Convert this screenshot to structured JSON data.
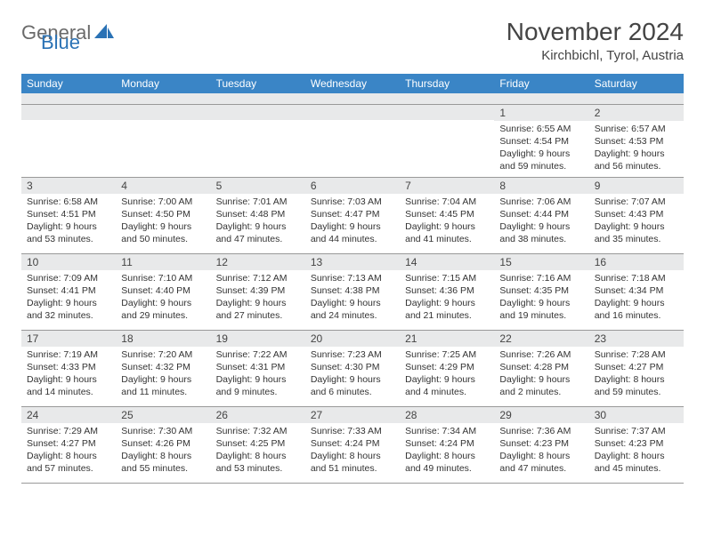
{
  "brand": {
    "part1": "General",
    "part2": "Blue"
  },
  "title": "November 2024",
  "location": "Kirchbichl, Tyrol, Austria",
  "colors": {
    "header_bg": "#3a85c6",
    "header_text": "#ffffff",
    "daynum_bg": "#e8e9ea",
    "border": "#999999",
    "text": "#333333",
    "brand_gray": "#6a6a6a",
    "brand_blue": "#2a72b5"
  },
  "dayHeaders": [
    "Sunday",
    "Monday",
    "Tuesday",
    "Wednesday",
    "Thursday",
    "Friday",
    "Saturday"
  ],
  "weeks": [
    [
      {
        "n": "",
        "sr": "",
        "ss": "",
        "dl": ""
      },
      {
        "n": "",
        "sr": "",
        "ss": "",
        "dl": ""
      },
      {
        "n": "",
        "sr": "",
        "ss": "",
        "dl": ""
      },
      {
        "n": "",
        "sr": "",
        "ss": "",
        "dl": ""
      },
      {
        "n": "",
        "sr": "",
        "ss": "",
        "dl": ""
      },
      {
        "n": "1",
        "sr": "Sunrise: 6:55 AM",
        "ss": "Sunset: 4:54 PM",
        "dl": "Daylight: 9 hours and 59 minutes."
      },
      {
        "n": "2",
        "sr": "Sunrise: 6:57 AM",
        "ss": "Sunset: 4:53 PM",
        "dl": "Daylight: 9 hours and 56 minutes."
      }
    ],
    [
      {
        "n": "3",
        "sr": "Sunrise: 6:58 AM",
        "ss": "Sunset: 4:51 PM",
        "dl": "Daylight: 9 hours and 53 minutes."
      },
      {
        "n": "4",
        "sr": "Sunrise: 7:00 AM",
        "ss": "Sunset: 4:50 PM",
        "dl": "Daylight: 9 hours and 50 minutes."
      },
      {
        "n": "5",
        "sr": "Sunrise: 7:01 AM",
        "ss": "Sunset: 4:48 PM",
        "dl": "Daylight: 9 hours and 47 minutes."
      },
      {
        "n": "6",
        "sr": "Sunrise: 7:03 AM",
        "ss": "Sunset: 4:47 PM",
        "dl": "Daylight: 9 hours and 44 minutes."
      },
      {
        "n": "7",
        "sr": "Sunrise: 7:04 AM",
        "ss": "Sunset: 4:45 PM",
        "dl": "Daylight: 9 hours and 41 minutes."
      },
      {
        "n": "8",
        "sr": "Sunrise: 7:06 AM",
        "ss": "Sunset: 4:44 PM",
        "dl": "Daylight: 9 hours and 38 minutes."
      },
      {
        "n": "9",
        "sr": "Sunrise: 7:07 AM",
        "ss": "Sunset: 4:43 PM",
        "dl": "Daylight: 9 hours and 35 minutes."
      }
    ],
    [
      {
        "n": "10",
        "sr": "Sunrise: 7:09 AM",
        "ss": "Sunset: 4:41 PM",
        "dl": "Daylight: 9 hours and 32 minutes."
      },
      {
        "n": "11",
        "sr": "Sunrise: 7:10 AM",
        "ss": "Sunset: 4:40 PM",
        "dl": "Daylight: 9 hours and 29 minutes."
      },
      {
        "n": "12",
        "sr": "Sunrise: 7:12 AM",
        "ss": "Sunset: 4:39 PM",
        "dl": "Daylight: 9 hours and 27 minutes."
      },
      {
        "n": "13",
        "sr": "Sunrise: 7:13 AM",
        "ss": "Sunset: 4:38 PM",
        "dl": "Daylight: 9 hours and 24 minutes."
      },
      {
        "n": "14",
        "sr": "Sunrise: 7:15 AM",
        "ss": "Sunset: 4:36 PM",
        "dl": "Daylight: 9 hours and 21 minutes."
      },
      {
        "n": "15",
        "sr": "Sunrise: 7:16 AM",
        "ss": "Sunset: 4:35 PM",
        "dl": "Daylight: 9 hours and 19 minutes."
      },
      {
        "n": "16",
        "sr": "Sunrise: 7:18 AM",
        "ss": "Sunset: 4:34 PM",
        "dl": "Daylight: 9 hours and 16 minutes."
      }
    ],
    [
      {
        "n": "17",
        "sr": "Sunrise: 7:19 AM",
        "ss": "Sunset: 4:33 PM",
        "dl": "Daylight: 9 hours and 14 minutes."
      },
      {
        "n": "18",
        "sr": "Sunrise: 7:20 AM",
        "ss": "Sunset: 4:32 PM",
        "dl": "Daylight: 9 hours and 11 minutes."
      },
      {
        "n": "19",
        "sr": "Sunrise: 7:22 AM",
        "ss": "Sunset: 4:31 PM",
        "dl": "Daylight: 9 hours and 9 minutes."
      },
      {
        "n": "20",
        "sr": "Sunrise: 7:23 AM",
        "ss": "Sunset: 4:30 PM",
        "dl": "Daylight: 9 hours and 6 minutes."
      },
      {
        "n": "21",
        "sr": "Sunrise: 7:25 AM",
        "ss": "Sunset: 4:29 PM",
        "dl": "Daylight: 9 hours and 4 minutes."
      },
      {
        "n": "22",
        "sr": "Sunrise: 7:26 AM",
        "ss": "Sunset: 4:28 PM",
        "dl": "Daylight: 9 hours and 2 minutes."
      },
      {
        "n": "23",
        "sr": "Sunrise: 7:28 AM",
        "ss": "Sunset: 4:27 PM",
        "dl": "Daylight: 8 hours and 59 minutes."
      }
    ],
    [
      {
        "n": "24",
        "sr": "Sunrise: 7:29 AM",
        "ss": "Sunset: 4:27 PM",
        "dl": "Daylight: 8 hours and 57 minutes."
      },
      {
        "n": "25",
        "sr": "Sunrise: 7:30 AM",
        "ss": "Sunset: 4:26 PM",
        "dl": "Daylight: 8 hours and 55 minutes."
      },
      {
        "n": "26",
        "sr": "Sunrise: 7:32 AM",
        "ss": "Sunset: 4:25 PM",
        "dl": "Daylight: 8 hours and 53 minutes."
      },
      {
        "n": "27",
        "sr": "Sunrise: 7:33 AM",
        "ss": "Sunset: 4:24 PM",
        "dl": "Daylight: 8 hours and 51 minutes."
      },
      {
        "n": "28",
        "sr": "Sunrise: 7:34 AM",
        "ss": "Sunset: 4:24 PM",
        "dl": "Daylight: 8 hours and 49 minutes."
      },
      {
        "n": "29",
        "sr": "Sunrise: 7:36 AM",
        "ss": "Sunset: 4:23 PM",
        "dl": "Daylight: 8 hours and 47 minutes."
      },
      {
        "n": "30",
        "sr": "Sunrise: 7:37 AM",
        "ss": "Sunset: 4:23 PM",
        "dl": "Daylight: 8 hours and 45 minutes."
      }
    ]
  ]
}
